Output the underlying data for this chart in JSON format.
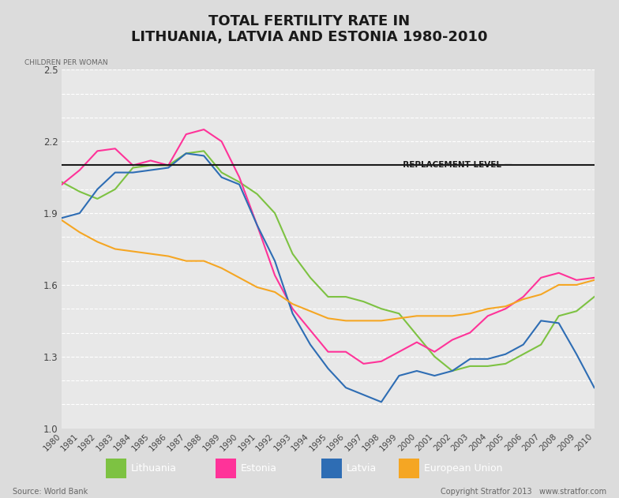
{
  "title": "TOTAL FERTILITY RATE IN\nLITHUANIA, LATVIA AND ESTONIA 1980-2010",
  "ylabel": "CHILDREN PER WOMAN",
  "replacement_level": 2.1,
  "replacement_label": "REPLACEMENT LEVEL",
  "ylim": [
    1.0,
    2.5
  ],
  "yticks": [
    1.0,
    1.1,
    1.2,
    1.3,
    1.4,
    1.5,
    1.6,
    1.7,
    1.8,
    1.9,
    2.0,
    2.1,
    2.2,
    2.3,
    2.4,
    2.5
  ],
  "years": [
    1980,
    1981,
    1982,
    1983,
    1984,
    1985,
    1986,
    1987,
    1988,
    1989,
    1990,
    1991,
    1992,
    1993,
    1994,
    1995,
    1996,
    1997,
    1998,
    1999,
    2000,
    2001,
    2002,
    2003,
    2004,
    2005,
    2006,
    2007,
    2008,
    2009,
    2010
  ],
  "Lithuania": [
    2.03,
    1.99,
    1.96,
    2.0,
    2.09,
    2.1,
    2.1,
    2.15,
    2.16,
    2.07,
    2.03,
    1.98,
    1.9,
    1.73,
    1.63,
    1.55,
    1.55,
    1.53,
    1.5,
    1.48,
    1.39,
    1.3,
    1.24,
    1.26,
    1.26,
    1.27,
    1.31,
    1.35,
    1.47,
    1.49,
    1.55
  ],
  "Estonia": [
    2.02,
    2.08,
    2.16,
    2.17,
    2.1,
    2.12,
    2.1,
    2.23,
    2.25,
    2.2,
    2.05,
    1.85,
    1.64,
    1.5,
    1.41,
    1.32,
    1.32,
    1.27,
    1.28,
    1.32,
    1.36,
    1.32,
    1.37,
    1.4,
    1.47,
    1.5,
    1.55,
    1.63,
    1.65,
    1.62,
    1.63
  ],
  "Latvia": [
    1.88,
    1.9,
    2.0,
    2.07,
    2.07,
    2.08,
    2.09,
    2.15,
    2.14,
    2.05,
    2.02,
    1.85,
    1.7,
    1.48,
    1.35,
    1.25,
    1.17,
    1.14,
    1.11,
    1.22,
    1.24,
    1.22,
    1.24,
    1.29,
    1.29,
    1.31,
    1.35,
    1.45,
    1.44,
    1.31,
    1.17
  ],
  "European_Union": [
    1.87,
    1.82,
    1.78,
    1.75,
    1.74,
    1.73,
    1.72,
    1.7,
    1.7,
    1.67,
    1.63,
    1.59,
    1.57,
    1.52,
    1.49,
    1.46,
    1.45,
    1.45,
    1.45,
    1.46,
    1.47,
    1.47,
    1.47,
    1.48,
    1.5,
    1.51,
    1.54,
    1.56,
    1.6,
    1.6,
    1.62
  ],
  "colors": {
    "Lithuania": "#7DC242",
    "Estonia": "#FF3399",
    "Latvia": "#2E6DB4",
    "European_Union": "#F5A623"
  },
  "legend_labels": [
    "Lithuania",
    "Estonia",
    "Latvia",
    "European Union"
  ],
  "legend_colors": [
    "#7DC242",
    "#FF3399",
    "#2E6DB4",
    "#F5A623"
  ],
  "bg_color": "#E8E8E8",
  "plot_bg_color": "#E8E8E8",
  "title_bg_color": "#D0D0D0",
  "source_text": "Source: World Bank",
  "copyright_text": "Copyright Stratfor 2013   www.stratfor.com"
}
